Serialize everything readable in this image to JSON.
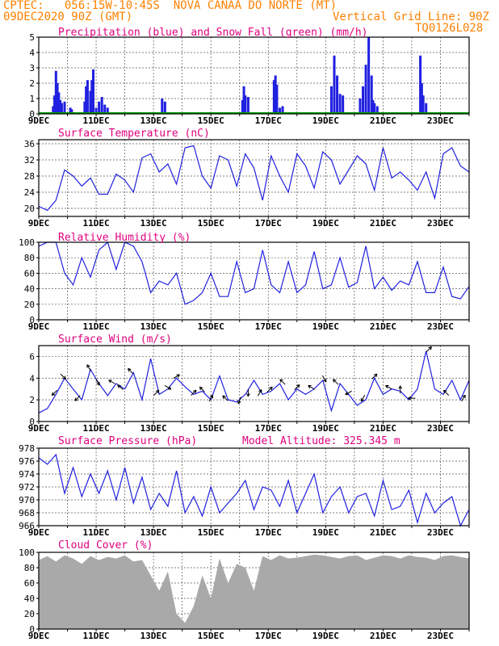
{
  "header": {
    "line1": "CPTEC:   056:15W-10:45S  NOVA CANAA DO NORTE (MT)",
    "line2_left": "09DEC2020 90Z (GMT)",
    "line2_right": "Vertical Grid Line: 90Z",
    "code": "TQ0126L028"
  },
  "colors": {
    "orange": "#ff8000",
    "magenta": "#e0007f",
    "line": "#2020e0",
    "snow": "#00a000",
    "cloud": "#a9a9a9"
  },
  "x_tick_labels": [
    "9DEC",
    "11DEC",
    "13DEC",
    "15DEC",
    "17DEC",
    "19DEC",
    "21DEC",
    "23DEC"
  ],
  "chart_data": [
    {
      "type": "bar",
      "title": "Precipitation (blue) and Snow Fall (green) (mm/h)",
      "xlim_days": [
        0,
        15
      ],
      "ylim": [
        0,
        5
      ],
      "yticks": [
        0,
        1,
        2,
        3,
        4,
        5
      ],
      "series": [
        {
          "name": "Precipitation",
          "x": [
            0.5,
            0.55,
            0.6,
            0.65,
            0.7,
            0.75,
            0.8,
            0.9,
            1.1,
            1.15,
            1.6,
            1.65,
            1.7,
            1.8,
            1.85,
            1.9,
            2.0,
            2.1,
            2.2,
            2.3,
            2.4,
            4.3,
            4.4,
            7.1,
            7.15,
            7.2,
            7.3,
            8.2,
            8.25,
            8.3,
            8.4,
            8.5,
            10.2,
            10.3,
            10.4,
            10.5,
            10.6,
            11.2,
            11.3,
            11.4,
            11.5,
            11.6,
            11.65,
            11.7,
            11.8,
            13.3,
            13.35,
            13.4,
            13.5
          ],
          "values": [
            0.5,
            1.2,
            2.8,
            2.0,
            1.4,
            0.9,
            0.7,
            0.8,
            0.4,
            0.3,
            0.8,
            1.8,
            2.2,
            1.5,
            2.2,
            2.9,
            0.4,
            0.8,
            1.1,
            0.6,
            0.4,
            1.0,
            0.8,
            0.9,
            1.8,
            1.2,
            1.1,
            2.2,
            2.5,
            1.9,
            0.4,
            0.5,
            1.8,
            3.8,
            2.5,
            1.3,
            1.2,
            1.0,
            1.8,
            3.2,
            5.0,
            2.5,
            0.9,
            0.7,
            0.5,
            3.8,
            2.0,
            1.2,
            0.7
          ]
        },
        {
          "name": "Snow Fall",
          "x": [
            0,
            15
          ],
          "values": [
            0,
            0
          ]
        }
      ]
    },
    {
      "type": "line",
      "title": "Surface Temperature (nC)",
      "xlim_days": [
        0,
        15
      ],
      "ylim": [
        18,
        37
      ],
      "yticks": [
        20,
        24,
        28,
        32,
        36
      ],
      "series": [
        {
          "name": "Temperature",
          "x": [
            0,
            0.3,
            0.6,
            0.9,
            1.2,
            1.5,
            1.8,
            2.1,
            2.4,
            2.7,
            3.0,
            3.3,
            3.6,
            3.9,
            4.2,
            4.5,
            4.8,
            5.1,
            5.4,
            5.7,
            6.0,
            6.3,
            6.6,
            6.9,
            7.2,
            7.5,
            7.8,
            8.1,
            8.4,
            8.7,
            9.0,
            9.3,
            9.6,
            9.9,
            10.2,
            10.5,
            10.8,
            11.1,
            11.4,
            11.7,
            12.0,
            12.3,
            12.6,
            12.9,
            13.2,
            13.5,
            13.8,
            14.1,
            14.4,
            14.7,
            15.0
          ],
          "values": [
            20.5,
            19.5,
            22,
            29.5,
            28,
            25.5,
            27.5,
            23.5,
            23.5,
            28.5,
            27,
            24,
            32.5,
            33.5,
            29,
            31,
            26,
            35,
            35.5,
            28,
            25,
            33,
            32,
            25.5,
            33.5,
            30,
            22,
            33,
            28,
            24,
            33.5,
            30.5,
            25,
            34,
            32,
            26,
            29.5,
            33,
            31,
            24.5,
            35,
            27.5,
            29,
            27,
            24.5,
            29,
            22.5,
            33.5,
            35,
            30.5,
            29
          ]
        }
      ]
    },
    {
      "type": "line",
      "title": "Relative Humidity (%)",
      "xlim_days": [
        0,
        15
      ],
      "ylim": [
        0,
        100
      ],
      "yticks": [
        0,
        20,
        40,
        60,
        80,
        100
      ],
      "series": [
        {
          "name": "Relative Humidity",
          "x": [
            0,
            0.3,
            0.6,
            0.9,
            1.2,
            1.5,
            1.8,
            2.1,
            2.4,
            2.7,
            3.0,
            3.3,
            3.6,
            3.9,
            4.2,
            4.5,
            4.8,
            5.1,
            5.4,
            5.7,
            6.0,
            6.3,
            6.6,
            6.9,
            7.2,
            7.5,
            7.8,
            8.1,
            8.4,
            8.7,
            9.0,
            9.3,
            9.6,
            9.9,
            10.2,
            10.5,
            10.8,
            11.1,
            11.4,
            11.7,
            12.0,
            12.3,
            12.6,
            12.9,
            13.2,
            13.5,
            13.8,
            14.1,
            14.4,
            14.7,
            15.0
          ],
          "values": [
            95,
            100,
            100,
            60,
            45,
            80,
            55,
            90,
            100,
            65,
            100,
            95,
            75,
            35,
            50,
            45,
            60,
            20,
            25,
            35,
            60,
            30,
            30,
            75,
            35,
            40,
            90,
            45,
            35,
            75,
            35,
            45,
            88,
            40,
            45,
            80,
            42,
            48,
            95,
            40,
            55,
            38,
            50,
            45,
            75,
            35,
            35,
            68,
            30,
            27,
            43
          ]
        }
      ]
    },
    {
      "type": "line",
      "title": "Surface Wind (m/s)",
      "xlim_days": [
        0,
        15
      ],
      "ylim": [
        0,
        7
      ],
      "yticks": [
        0,
        2,
        4,
        6
      ],
      "series": [
        {
          "name": "Wind speed",
          "x": [
            0,
            0.3,
            0.6,
            0.9,
            1.2,
            1.5,
            1.8,
            2.1,
            2.4,
            2.7,
            3.0,
            3.3,
            3.6,
            3.9,
            4.2,
            4.5,
            4.8,
            5.1,
            5.4,
            5.7,
            6.0,
            6.3,
            6.6,
            6.9,
            7.2,
            7.5,
            7.8,
            8.1,
            8.4,
            8.7,
            9.0,
            9.3,
            9.6,
            9.9,
            10.2,
            10.5,
            10.8,
            11.1,
            11.4,
            11.7,
            12.0,
            12.3,
            12.6,
            12.9,
            13.2,
            13.5,
            13.8,
            14.1,
            14.4,
            14.7,
            15.0
          ],
          "values": [
            0.8,
            1.2,
            2.5,
            4.0,
            3.0,
            2.0,
            4.8,
            3.5,
            2.4,
            3.5,
            3.0,
            4.5,
            2.0,
            5.8,
            2.5,
            3.0,
            4.0,
            3.2,
            2.5,
            2.8,
            2.0,
            4.2,
            2.0,
            1.8,
            2.5,
            3.8,
            2.5,
            2.8,
            3.5,
            2.0,
            3.0,
            2.5,
            3.0,
            3.8,
            1.0,
            3.5,
            2.5,
            1.5,
            2.0,
            4.0,
            2.5,
            3.0,
            2.8,
            2.0,
            3.0,
            6.5,
            3.0,
            2.5,
            3.8,
            2.0,
            3.8
          ]
        }
      ],
      "arrows": [
        {
          "x": 0.55,
          "dir_deg": 225
        },
        {
          "x": 0.85,
          "dir_deg": 315
        },
        {
          "x": 1.35,
          "dir_deg": 225
        },
        {
          "x": 1.75,
          "dir_deg": 120
        },
        {
          "x": 2.05,
          "dir_deg": 300
        },
        {
          "x": 2.55,
          "dir_deg": 150
        },
        {
          "x": 2.85,
          "dir_deg": 140
        },
        {
          "x": 3.2,
          "dir_deg": 135
        },
        {
          "x": 4.1,
          "dir_deg": 45
        },
        {
          "x": 4.5,
          "dir_deg": 330
        },
        {
          "x": 4.8,
          "dir_deg": 30
        },
        {
          "x": 5.4,
          "dir_deg": 45
        },
        {
          "x": 5.7,
          "dir_deg": 135
        },
        {
          "x": 6.0,
          "dir_deg": 60
        },
        {
          "x": 6.5,
          "dir_deg": 135
        },
        {
          "x": 7.0,
          "dir_deg": 250
        },
        {
          "x": 7.3,
          "dir_deg": 270
        },
        {
          "x": 7.7,
          "dir_deg": 60
        },
        {
          "x": 8.05,
          "dir_deg": 45
        },
        {
          "x": 8.5,
          "dir_deg": 135
        },
        {
          "x": 9.0,
          "dir_deg": 45
        },
        {
          "x": 9.5,
          "dir_deg": 150
        },
        {
          "x": 9.95,
          "dir_deg": 300
        },
        {
          "x": 10.35,
          "dir_deg": 135
        },
        {
          "x": 10.8,
          "dir_deg": 210
        },
        {
          "x": 11.3,
          "dir_deg": 240
        },
        {
          "x": 11.7,
          "dir_deg": 45
        },
        {
          "x": 12.2,
          "dir_deg": 150
        },
        {
          "x": 12.6,
          "dir_deg": 90
        },
        {
          "x": 13.0,
          "dir_deg": 180
        },
        {
          "x": 13.6,
          "dir_deg": 45
        },
        {
          "x": 14.2,
          "dir_deg": 135
        },
        {
          "x": 14.8,
          "dir_deg": 60
        }
      ]
    },
    {
      "type": "line",
      "title": "Surface Pressure (hPa)",
      "subtitle": "Model Altitude: 325.345 m",
      "xlim_days": [
        0,
        15
      ],
      "ylim": [
        966,
        978
      ],
      "yticks": [
        966,
        968,
        970,
        972,
        974,
        976,
        978
      ],
      "series": [
        {
          "name": "Pressure",
          "x": [
            0,
            0.3,
            0.6,
            0.9,
            1.2,
            1.5,
            1.8,
            2.1,
            2.4,
            2.7,
            3.0,
            3.3,
            3.6,
            3.9,
            4.2,
            4.5,
            4.8,
            5.1,
            5.4,
            5.7,
            6.0,
            6.3,
            6.6,
            6.9,
            7.2,
            7.5,
            7.8,
            8.1,
            8.4,
            8.7,
            9.0,
            9.3,
            9.6,
            9.9,
            10.2,
            10.5,
            10.8,
            11.1,
            11.4,
            11.7,
            12.0,
            12.3,
            12.6,
            12.9,
            13.2,
            13.5,
            13.8,
            14.1,
            14.4,
            14.7,
            15.0
          ],
          "values": [
            976.5,
            975.5,
            977,
            971,
            975,
            970.5,
            974,
            971,
            974.5,
            970,
            975,
            969.5,
            973.5,
            968.5,
            971,
            969,
            974.5,
            968,
            970.5,
            967.5,
            972,
            968,
            969.5,
            971,
            973,
            968.5,
            972,
            971.5,
            969,
            973,
            968,
            971,
            974,
            968,
            970.5,
            972,
            968,
            970.5,
            971,
            967.5,
            973,
            968.5,
            969,
            971.5,
            966.5,
            971,
            968,
            969.5,
            970.5,
            966,
            968.5
          ]
        }
      ]
    },
    {
      "type": "area",
      "title": "Cloud Cover (%)",
      "xlim_days": [
        0,
        15
      ],
      "ylim": [
        0,
        100
      ],
      "yticks": [
        0,
        20,
        40,
        60,
        80,
        100
      ],
      "series": [
        {
          "name": "Cloud Cover",
          "x": [
            0,
            0.3,
            0.6,
            0.9,
            1.2,
            1.5,
            1.8,
            2.1,
            2.4,
            2.7,
            3.0,
            3.3,
            3.6,
            3.9,
            4.2,
            4.5,
            4.8,
            5.1,
            5.4,
            5.7,
            6.0,
            6.3,
            6.6,
            6.9,
            7.2,
            7.5,
            7.8,
            8.1,
            8.4,
            8.7,
            9.0,
            9.3,
            9.6,
            9.9,
            10.2,
            10.5,
            10.8,
            11.1,
            11.4,
            11.7,
            12.0,
            12.3,
            12.6,
            12.9,
            13.2,
            13.5,
            13.8,
            14.1,
            14.4,
            14.7,
            15.0
          ],
          "values": [
            90,
            95,
            88,
            96,
            92,
            85,
            95,
            90,
            94,
            92,
            96,
            88,
            90,
            70,
            50,
            75,
            20,
            8,
            30,
            70,
            40,
            92,
            60,
            85,
            80,
            50,
            95,
            90,
            96,
            92,
            93,
            95,
            97,
            96,
            94,
            92,
            95,
            96,
            90,
            93,
            96,
            95,
            92,
            96,
            94,
            93,
            90,
            95,
            96,
            94,
            92
          ]
        }
      ]
    }
  ]
}
